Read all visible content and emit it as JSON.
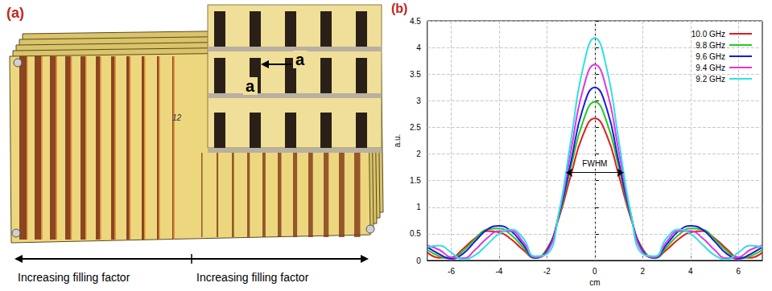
{
  "panel_a": {
    "label": "(a)",
    "inset_labels": [
      "a",
      "a"
    ],
    "handwriting": "12",
    "arrow_labels": [
      "Increasing filling factor",
      "Increasing filling factor"
    ]
  },
  "chart_data": {
    "type": "line",
    "panel_label": "(b)",
    "xlabel": "cm",
    "ylabel": "a.u.",
    "x": [
      -7,
      -6.5,
      -6,
      -5.5,
      -5,
      -4.5,
      -4,
      -3.5,
      -3,
      -2.5,
      -2,
      -1.5,
      -1,
      -0.5,
      0,
      0.5,
      1,
      1.5,
      2,
      2.5,
      3,
      3.5,
      4,
      4.5,
      5,
      5.5,
      6,
      6.5,
      7
    ],
    "xlim": [
      -7,
      7
    ],
    "xticks": [
      -6,
      -4,
      -2,
      0,
      2,
      4,
      6
    ],
    "ylim": [
      0,
      4.5
    ],
    "yticks": [
      0,
      0.5,
      1,
      1.5,
      2,
      2.5,
      3,
      3.5,
      4,
      4.5
    ],
    "grid": true,
    "legend": "upper right",
    "marker": "none",
    "line_style": "solid",
    "series": [
      {
        "name": "10.0 GHz",
        "color": "#e41a1c",
        "values": [
          0.15,
          0.05,
          0.06,
          0.22,
          0.42,
          0.55,
          0.53,
          0.4,
          0.2,
          0.05,
          0.22,
          0.8,
          1.6,
          2.35,
          2.67,
          2.35,
          1.6,
          0.8,
          0.22,
          0.05,
          0.2,
          0.4,
          0.53,
          0.55,
          0.42,
          0.22,
          0.06,
          0.05,
          0.15
        ]
      },
      {
        "name": "9.8 GHz",
        "color": "#22cc22",
        "values": [
          0.2,
          0.08,
          0.04,
          0.18,
          0.4,
          0.58,
          0.6,
          0.48,
          0.25,
          0.04,
          0.2,
          0.82,
          1.75,
          2.6,
          2.98,
          2.6,
          1.75,
          0.82,
          0.2,
          0.04,
          0.25,
          0.48,
          0.6,
          0.58,
          0.4,
          0.18,
          0.04,
          0.08,
          0.2
        ]
      },
      {
        "name": "9.6 GHz",
        "color": "#1a1adc",
        "values": [
          0.25,
          0.12,
          0.03,
          0.13,
          0.36,
          0.58,
          0.65,
          0.55,
          0.3,
          0.05,
          0.18,
          0.85,
          1.85,
          2.85,
          3.25,
          2.85,
          1.85,
          0.85,
          0.18,
          0.05,
          0.3,
          0.55,
          0.65,
          0.58,
          0.36,
          0.13,
          0.03,
          0.12,
          0.25
        ]
      },
      {
        "name": "9.4 GHz",
        "color": "#e034e0",
        "values": [
          0.28,
          0.2,
          0.06,
          0.04,
          0.2,
          0.42,
          0.55,
          0.55,
          0.35,
          0.06,
          0.15,
          0.88,
          2.05,
          3.2,
          3.68,
          3.2,
          2.05,
          0.88,
          0.15,
          0.06,
          0.35,
          0.55,
          0.55,
          0.42,
          0.2,
          0.04,
          0.06,
          0.2,
          0.28
        ]
      },
      {
        "name": "9.2 GHz",
        "color": "#30e0e0",
        "values": [
          0.25,
          0.28,
          0.15,
          0.02,
          0.1,
          0.3,
          0.5,
          0.58,
          0.42,
          0.08,
          0.12,
          0.9,
          2.25,
          3.6,
          4.18,
          3.6,
          2.25,
          0.9,
          0.12,
          0.08,
          0.42,
          0.58,
          0.5,
          0.3,
          0.1,
          0.02,
          0.15,
          0.28,
          0.25
        ]
      }
    ],
    "annotations": [
      {
        "text": "FWHM",
        "x": [
          -1.2,
          1.2
        ],
        "y": 1.65
      }
    ]
  }
}
